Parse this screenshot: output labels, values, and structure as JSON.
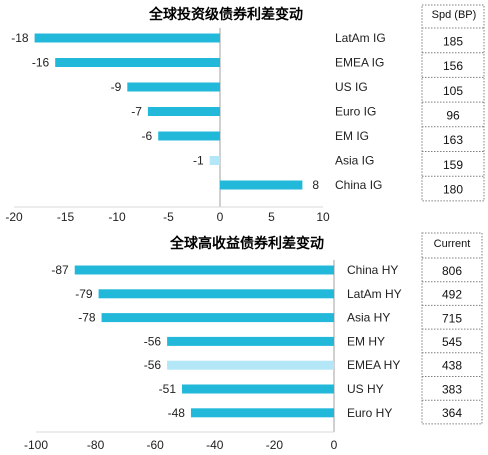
{
  "colors": {
    "bar": "#22b8d9",
    "bar_highlight": "#b3e6f6",
    "axis": "#a0a0a0",
    "table_border": "#7f7f7f"
  },
  "chart_data": [
    {
      "type": "bar",
      "orientation": "horizontal",
      "title": "全球投资级债券利差变动",
      "categories": [
        "LatAm IG",
        "EMEA IG",
        "US IG",
        "Euro IG",
        "EM IG",
        "Asia IG",
        "China IG"
      ],
      "values": [
        -18,
        -16,
        -9,
        -7,
        -6,
        -1,
        8
      ],
      "xlim": [
        -20,
        10
      ],
      "xticks": [
        -20,
        -15,
        -10,
        -5,
        0,
        5,
        10
      ],
      "highlight_category": "Asia IG",
      "table": {
        "header": "Spd (BP)",
        "values": [
          "185",
          "156",
          "105",
          "96",
          "163",
          "159",
          "180"
        ]
      }
    },
    {
      "type": "bar",
      "orientation": "horizontal",
      "title": "全球高收益债券利差变动",
      "categories": [
        "China HY",
        "LatAm HY",
        "Asia HY",
        "EM HY",
        "EMEA HY",
        "US HY",
        "Euro HY"
      ],
      "values": [
        -87,
        -79,
        -78,
        -56,
        -56,
        -51,
        -48
      ],
      "xlim": [
        -100,
        0
      ],
      "xticks": [
        -100,
        -80,
        -60,
        -40,
        -20,
        0
      ],
      "highlight_category": "EMEA HY",
      "table": {
        "header": "Current",
        "values": [
          "806",
          "492",
          "715",
          "545",
          "438",
          "383",
          "364"
        ]
      }
    }
  ]
}
